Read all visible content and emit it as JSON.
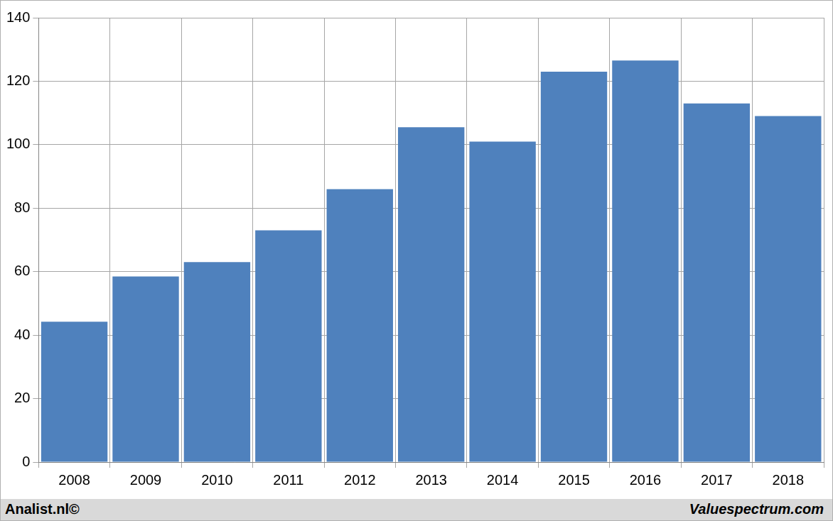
{
  "chart_data": {
    "type": "bar",
    "categories": [
      "2008",
      "2009",
      "2010",
      "2011",
      "2012",
      "2013",
      "2014",
      "2015",
      "2016",
      "2017",
      "2018"
    ],
    "values": [
      44.2,
      58.5,
      63,
      73,
      86,
      105.5,
      101,
      123,
      126.5,
      113,
      109
    ],
    "color": "#4f81bd",
    "ylim": [
      0,
      140
    ],
    "yticks": [
      0,
      20,
      40,
      60,
      80,
      100,
      120,
      140
    ],
    "grid": true,
    "annotations": [
      "Analist.nl©",
      "Valuespectrum.com"
    ]
  }
}
